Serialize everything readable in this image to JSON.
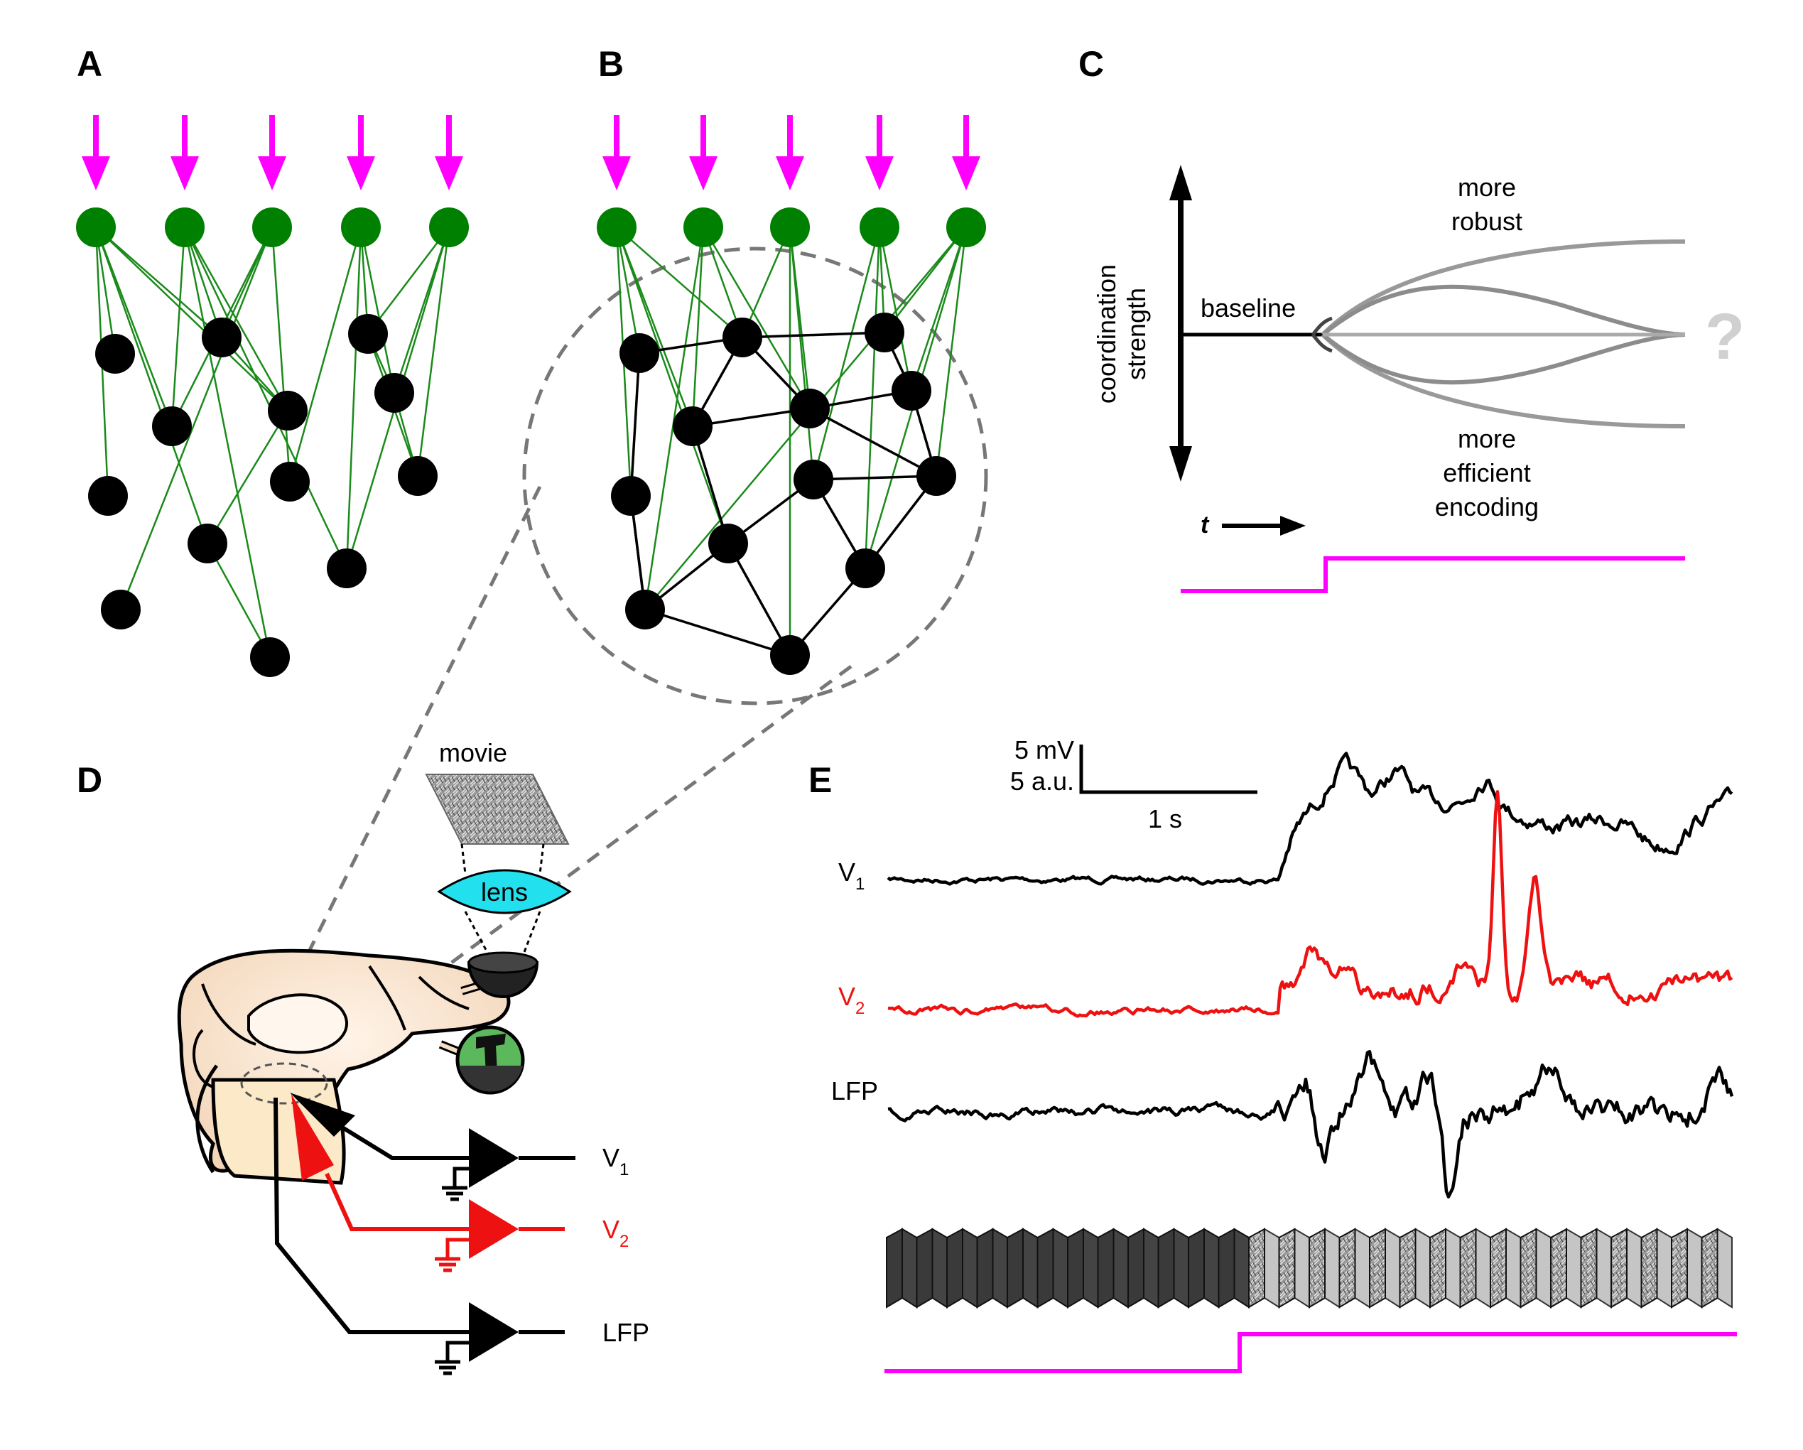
{
  "panels": {
    "a": {
      "letter": "A"
    },
    "b": {
      "letter": "B"
    },
    "c": {
      "letter": "C",
      "axis_label_line1": "coordination",
      "axis_label_line2": "strength",
      "baseline_label": "baseline",
      "upper_label_line1": "more",
      "upper_label_line2": "robust",
      "lower_label_line1": "more",
      "lower_label_line2": "efficient",
      "lower_label_line3": "encoding",
      "time_label": "t",
      "question_mark": "?"
    },
    "d": {
      "letter": "D",
      "movie_label": "movie",
      "lens_label": "lens",
      "v1_label": "V",
      "v1_sub": "1",
      "v2_label": "V",
      "v2_sub": "2",
      "lfp_label": "LFP"
    },
    "e": {
      "letter": "E",
      "scale_v_line1": "5 mV",
      "scale_v_line2": "5 a.u.",
      "scale_t": "1 s",
      "v1_label": "V",
      "v1_sub": "1",
      "v2_label": "V",
      "v2_sub": "2",
      "lfp_label": "LFP"
    }
  },
  "colors": {
    "stimulus": "#ff00ff",
    "input_neuron": "#008000",
    "neuron": "#000000",
    "connection_input": "#1a8a1a",
    "v2_trace": "#ee1111",
    "lens": "#22e0ee",
    "dashed": "#777777"
  },
  "icons": {
    "brain": "mouse-brain-illustration",
    "eye": "eye-illustration",
    "movie_frame": "natural-movie-frame"
  }
}
